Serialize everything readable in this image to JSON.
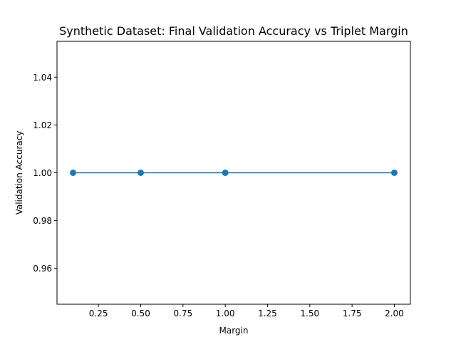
{
  "chart_data": {
    "type": "line",
    "title": "Synthetic Dataset: Final Validation Accuracy vs Triplet Margin",
    "xlabel": "Margin",
    "ylabel": "Validation Accuracy",
    "x": [
      0.1,
      0.5,
      1.0,
      2.0
    ],
    "series": [
      {
        "values": [
          1.0,
          1.0,
          1.0,
          1.0
        ],
        "color": "#1f77b4",
        "marker": "circle"
      }
    ],
    "xlim": [
      0.005,
      2.095
    ],
    "ylim": [
      0.945,
      1.055
    ],
    "xticks": [
      0.25,
      0.5,
      0.75,
      1.0,
      1.25,
      1.5,
      1.75,
      2.0
    ],
    "xtick_labels": [
      "0.25",
      "0.50",
      "0.75",
      "1.00",
      "1.25",
      "1.50",
      "1.75",
      "2.00"
    ],
    "yticks": [
      0.96,
      0.98,
      1.0,
      1.02,
      1.04
    ],
    "ytick_labels": [
      "0.96",
      "0.98",
      "1.00",
      "1.02",
      "1.04"
    ],
    "grid": false,
    "legend": false
  }
}
